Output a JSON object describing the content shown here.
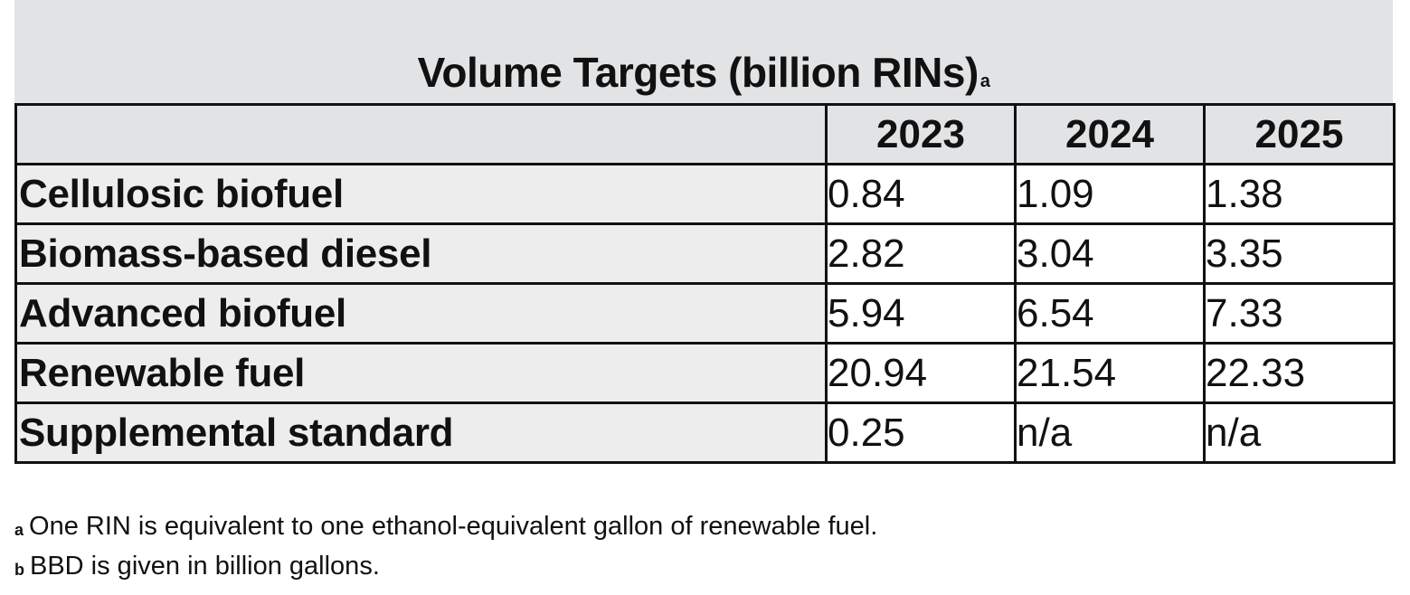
{
  "title": {
    "text": "Volume Targets (billion RINs)",
    "marker": "a"
  },
  "table": {
    "columns": [
      "",
      "2023",
      "2024",
      "2025"
    ],
    "rows": [
      {
        "label": "Cellulosic biofuel",
        "values": [
          "0.84",
          "1.09",
          "1.38"
        ]
      },
      {
        "label": "Biomass-based diesel",
        "values": [
          "2.82",
          "3.04",
          "3.35"
        ]
      },
      {
        "label": "Advanced biofuel",
        "values": [
          "5.94",
          "6.54",
          "7.33"
        ]
      },
      {
        "label": "Renewable fuel",
        "values": [
          "20.94",
          "21.54",
          "22.33"
        ]
      },
      {
        "label": "Supplemental standard",
        "values": [
          "0.25",
          "n/a",
          "n/a"
        ]
      }
    ]
  },
  "footnotes": [
    {
      "marker": "a",
      "text": "One RIN is equivalent to one ethanol-equivalent gallon of renewable fuel."
    },
    {
      "marker": "b",
      "text": "BBD is given in billion gallons."
    }
  ],
  "colors": {
    "header_background": "#e2e3e5",
    "border": "#111111",
    "text": "#111111"
  }
}
